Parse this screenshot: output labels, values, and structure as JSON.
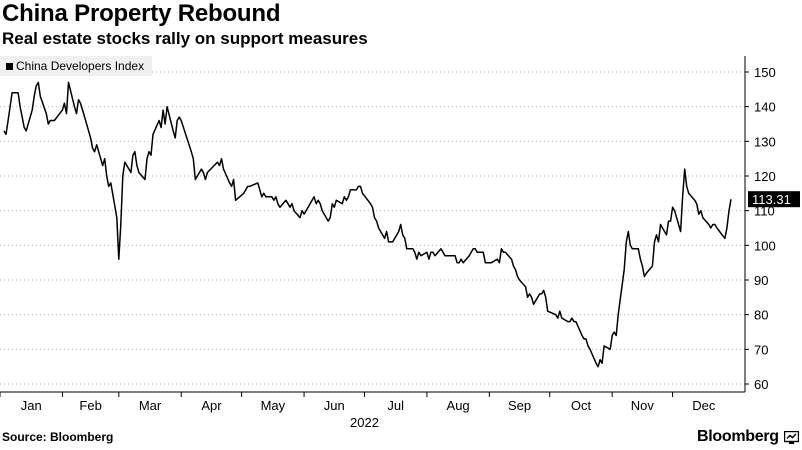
{
  "header": {
    "title": "China Property Rebound",
    "subtitle": "Real estate stocks rally on support measures"
  },
  "legend": {
    "label": "China Developers Index"
  },
  "footer": {
    "source": "Source: Bloomberg",
    "brand": "Bloomberg"
  },
  "colors": {
    "line": "#000000",
    "grid": "#bbbbbb",
    "legend_bg": "#f0f0f0",
    "last_value_bg": "#000000",
    "last_value_text": "#ffffff"
  },
  "icons": {
    "brand_logo": "bloomberg-terminal-icon"
  },
  "chart_data": {
    "type": "line",
    "title": "China Property Rebound",
    "subtitle": "Real estate stocks rally on support measures",
    "xlabel": "",
    "ylabel": "",
    "ylim": [
      60,
      155
    ],
    "yticks": [
      60,
      70,
      80,
      90,
      100,
      110,
      120,
      130,
      140,
      150
    ],
    "y_axis_side": "right",
    "grid": "horizontal dotted",
    "legend_position": "top-left",
    "months": [
      "Jan",
      "Feb",
      "Mar",
      "Apr",
      "May",
      "Jun",
      "Jul",
      "Aug",
      "Sep",
      "Oct",
      "Nov",
      "Dec"
    ],
    "year_label": "2022",
    "last_value_label": "113.31",
    "series": [
      {
        "name": "China Developers Index",
        "points": [
          [
            "2022-01-03",
            133
          ],
          [
            "2022-01-04",
            132
          ],
          [
            "2022-01-05",
            136
          ],
          [
            "2022-01-06",
            140
          ],
          [
            "2022-01-07",
            144
          ],
          [
            "2022-01-10",
            144
          ],
          [
            "2022-01-11",
            140
          ],
          [
            "2022-01-12",
            137
          ],
          [
            "2022-01-13",
            134
          ],
          [
            "2022-01-14",
            133
          ],
          [
            "2022-01-17",
            139
          ],
          [
            "2022-01-18",
            143
          ],
          [
            "2022-01-19",
            146
          ],
          [
            "2022-01-20",
            147
          ],
          [
            "2022-01-21",
            143
          ],
          [
            "2022-01-24",
            138
          ],
          [
            "2022-01-25",
            135
          ],
          [
            "2022-01-26",
            136
          ],
          [
            "2022-01-27",
            136
          ],
          [
            "2022-01-28",
            136
          ],
          [
            "2022-02-01",
            139
          ],
          [
            "2022-02-02",
            141
          ],
          [
            "2022-02-03",
            138
          ],
          [
            "2022-02-04",
            147
          ],
          [
            "2022-02-07",
            140
          ],
          [
            "2022-02-08",
            138
          ],
          [
            "2022-02-09",
            142
          ],
          [
            "2022-02-10",
            141
          ],
          [
            "2022-02-11",
            139
          ],
          [
            "2022-02-14",
            133
          ],
          [
            "2022-02-15",
            131
          ],
          [
            "2022-02-16",
            128
          ],
          [
            "2022-02-17",
            127
          ],
          [
            "2022-02-18",
            129
          ],
          [
            "2022-02-21",
            123
          ],
          [
            "2022-02-22",
            125
          ],
          [
            "2022-02-23",
            120
          ],
          [
            "2022-02-24",
            117
          ],
          [
            "2022-02-25",
            118
          ],
          [
            "2022-02-28",
            108
          ],
          [
            "2022-03-01",
            96
          ],
          [
            "2022-03-02",
            106
          ],
          [
            "2022-03-03",
            120
          ],
          [
            "2022-03-04",
            124
          ],
          [
            "2022-03-07",
            121
          ],
          [
            "2022-03-08",
            126
          ],
          [
            "2022-03-09",
            127
          ],
          [
            "2022-03-10",
            123
          ],
          [
            "2022-03-11",
            121
          ],
          [
            "2022-03-14",
            119
          ],
          [
            "2022-03-15",
            125
          ],
          [
            "2022-03-16",
            127
          ],
          [
            "2022-03-17",
            126
          ],
          [
            "2022-03-18",
            132
          ],
          [
            "2022-03-21",
            136
          ],
          [
            "2022-03-22",
            134
          ],
          [
            "2022-03-23",
            139
          ],
          [
            "2022-03-24",
            135
          ],
          [
            "2022-03-25",
            140
          ],
          [
            "2022-03-28",
            133
          ],
          [
            "2022-03-29",
            131
          ],
          [
            "2022-03-30",
            136
          ],
          [
            "2022-03-31",
            137
          ],
          [
            "2022-04-01",
            136
          ],
          [
            "2022-04-06",
            127
          ],
          [
            "2022-04-07",
            125
          ],
          [
            "2022-04-08",
            119
          ],
          [
            "2022-04-11",
            122
          ],
          [
            "2022-04-12",
            121
          ],
          [
            "2022-04-13",
            119
          ],
          [
            "2022-04-14",
            121
          ],
          [
            "2022-04-19",
            124
          ],
          [
            "2022-04-20",
            123
          ],
          [
            "2022-04-21",
            125
          ],
          [
            "2022-04-22",
            122
          ],
          [
            "2022-04-25",
            118
          ],
          [
            "2022-04-26",
            117
          ],
          [
            "2022-04-27",
            119
          ],
          [
            "2022-04-28",
            113
          ],
          [
            "2022-05-02",
            115
          ],
          [
            "2022-05-03",
            116
          ],
          [
            "2022-05-04",
            117
          ],
          [
            "2022-05-05",
            117
          ],
          [
            "2022-05-09",
            118
          ],
          [
            "2022-05-10",
            116
          ],
          [
            "2022-05-11",
            114
          ],
          [
            "2022-05-12",
            115
          ],
          [
            "2022-05-13",
            114
          ],
          [
            "2022-05-16",
            114
          ],
          [
            "2022-05-17",
            113
          ],
          [
            "2022-05-18",
            114
          ],
          [
            "2022-05-19",
            112
          ],
          [
            "2022-05-20",
            111
          ],
          [
            "2022-05-23",
            113
          ],
          [
            "2022-05-24",
            112
          ],
          [
            "2022-05-25",
            111
          ],
          [
            "2022-05-26",
            112
          ],
          [
            "2022-05-27",
            110
          ],
          [
            "2022-05-30",
            108
          ],
          [
            "2022-05-31",
            110
          ],
          [
            "2022-06-01",
            109
          ],
          [
            "2022-06-02",
            110
          ],
          [
            "2022-06-06",
            114
          ],
          [
            "2022-06-07",
            112
          ],
          [
            "2022-06-08",
            113
          ],
          [
            "2022-06-09",
            112
          ],
          [
            "2022-06-10",
            110
          ],
          [
            "2022-06-13",
            107
          ],
          [
            "2022-06-14",
            108
          ],
          [
            "2022-06-15",
            112
          ],
          [
            "2022-06-16",
            111
          ],
          [
            "2022-06-17",
            113
          ],
          [
            "2022-06-20",
            112
          ],
          [
            "2022-06-21",
            114
          ],
          [
            "2022-06-22",
            113
          ],
          [
            "2022-06-23",
            114
          ],
          [
            "2022-06-24",
            116
          ],
          [
            "2022-06-27",
            116
          ],
          [
            "2022-06-28",
            117
          ],
          [
            "2022-06-29",
            117
          ],
          [
            "2022-06-30",
            115
          ],
          [
            "2022-07-04",
            112
          ],
          [
            "2022-07-05",
            111
          ],
          [
            "2022-07-06",
            108
          ],
          [
            "2022-07-07",
            107
          ],
          [
            "2022-07-08",
            105
          ],
          [
            "2022-07-11",
            102
          ],
          [
            "2022-07-12",
            104
          ],
          [
            "2022-07-13",
            101
          ],
          [
            "2022-07-14",
            101
          ],
          [
            "2022-07-15",
            101
          ],
          [
            "2022-07-18",
            104
          ],
          [
            "2022-07-19",
            106
          ],
          [
            "2022-07-20",
            103
          ],
          [
            "2022-07-21",
            102
          ],
          [
            "2022-07-22",
            99
          ],
          [
            "2022-07-25",
            99
          ],
          [
            "2022-07-26",
            98
          ],
          [
            "2022-07-27",
            96
          ],
          [
            "2022-07-28",
            98
          ],
          [
            "2022-07-29",
            97
          ],
          [
            "2022-08-01",
            98
          ],
          [
            "2022-08-02",
            96
          ],
          [
            "2022-08-03",
            98
          ],
          [
            "2022-08-04",
            98
          ],
          [
            "2022-08-05",
            97
          ],
          [
            "2022-08-08",
            99
          ],
          [
            "2022-08-09",
            98
          ],
          [
            "2022-08-10",
            97
          ],
          [
            "2022-08-11",
            97
          ],
          [
            "2022-08-12",
            97
          ],
          [
            "2022-08-15",
            97
          ],
          [
            "2022-08-16",
            95
          ],
          [
            "2022-08-17",
            95
          ],
          [
            "2022-08-18",
            96
          ],
          [
            "2022-08-19",
            95
          ],
          [
            "2022-08-22",
            97
          ],
          [
            "2022-08-23",
            98
          ],
          [
            "2022-08-24",
            99
          ],
          [
            "2022-08-25",
            99
          ],
          [
            "2022-08-26",
            98
          ],
          [
            "2022-08-29",
            98
          ],
          [
            "2022-08-30",
            95
          ],
          [
            "2022-08-31",
            95
          ],
          [
            "2022-09-01",
            95
          ],
          [
            "2022-09-02",
            95
          ],
          [
            "2022-09-05",
            96
          ],
          [
            "2022-09-06",
            95
          ],
          [
            "2022-09-07",
            99
          ],
          [
            "2022-09-08",
            98
          ],
          [
            "2022-09-09",
            98
          ],
          [
            "2022-09-12",
            96
          ],
          [
            "2022-09-13",
            94
          ],
          [
            "2022-09-14",
            93
          ],
          [
            "2022-09-15",
            91
          ],
          [
            "2022-09-16",
            90
          ],
          [
            "2022-09-19",
            88
          ],
          [
            "2022-09-20",
            85
          ],
          [
            "2022-09-21",
            86
          ],
          [
            "2022-09-22",
            85
          ],
          [
            "2022-09-23",
            83
          ],
          [
            "2022-09-26",
            86
          ],
          [
            "2022-09-27",
            86
          ],
          [
            "2022-09-28",
            87
          ],
          [
            "2022-09-29",
            85
          ],
          [
            "2022-09-30",
            81
          ],
          [
            "2022-10-04",
            80
          ],
          [
            "2022-10-05",
            79
          ],
          [
            "2022-10-06",
            81
          ],
          [
            "2022-10-07",
            79
          ],
          [
            "2022-10-10",
            78
          ],
          [
            "2022-10-11",
            78
          ],
          [
            "2022-10-12",
            79
          ],
          [
            "2022-10-13",
            78
          ],
          [
            "2022-10-14",
            78
          ],
          [
            "2022-10-17",
            74
          ],
          [
            "2022-10-18",
            73
          ],
          [
            "2022-10-19",
            73
          ],
          [
            "2022-10-20",
            71
          ],
          [
            "2022-10-21",
            70
          ],
          [
            "2022-10-24",
            66
          ],
          [
            "2022-10-25",
            65
          ],
          [
            "2022-10-26",
            67
          ],
          [
            "2022-10-27",
            66
          ],
          [
            "2022-10-28",
            71
          ],
          [
            "2022-10-31",
            70
          ],
          [
            "2022-11-01",
            74
          ],
          [
            "2022-11-02",
            75
          ],
          [
            "2022-11-03",
            74
          ],
          [
            "2022-11-04",
            80
          ],
          [
            "2022-11-07",
            93
          ],
          [
            "2022-11-08",
            101
          ],
          [
            "2022-11-09",
            104
          ],
          [
            "2022-11-10",
            100
          ],
          [
            "2022-11-11",
            99
          ],
          [
            "2022-11-14",
            99
          ],
          [
            "2022-11-15",
            96
          ],
          [
            "2022-11-16",
            94
          ],
          [
            "2022-11-17",
            91
          ],
          [
            "2022-11-18",
            92
          ],
          [
            "2022-11-21",
            94
          ],
          [
            "2022-11-22",
            101
          ],
          [
            "2022-11-23",
            103
          ],
          [
            "2022-11-24",
            101
          ],
          [
            "2022-11-25",
            106
          ],
          [
            "2022-11-28",
            103
          ],
          [
            "2022-11-29",
            107
          ],
          [
            "2022-11-30",
            107
          ],
          [
            "2022-12-01",
            111
          ],
          [
            "2022-12-02",
            110
          ],
          [
            "2022-12-05",
            104
          ],
          [
            "2022-12-06",
            114
          ],
          [
            "2022-12-07",
            122
          ],
          [
            "2022-12-08",
            117
          ],
          [
            "2022-12-09",
            115
          ],
          [
            "2022-12-12",
            113
          ],
          [
            "2022-12-13",
            112
          ],
          [
            "2022-12-14",
            109
          ],
          [
            "2022-12-15",
            110
          ],
          [
            "2022-12-16",
            108
          ],
          [
            "2022-12-19",
            106
          ],
          [
            "2022-12-20",
            105
          ],
          [
            "2022-12-21",
            106
          ],
          [
            "2022-12-22",
            106
          ],
          [
            "2022-12-23",
            105
          ],
          [
            "2022-12-27",
            102
          ],
          [
            "2022-12-28",
            105
          ],
          [
            "2022-12-29",
            110
          ],
          [
            "2022-12-30",
            113.31
          ]
        ]
      }
    ]
  }
}
